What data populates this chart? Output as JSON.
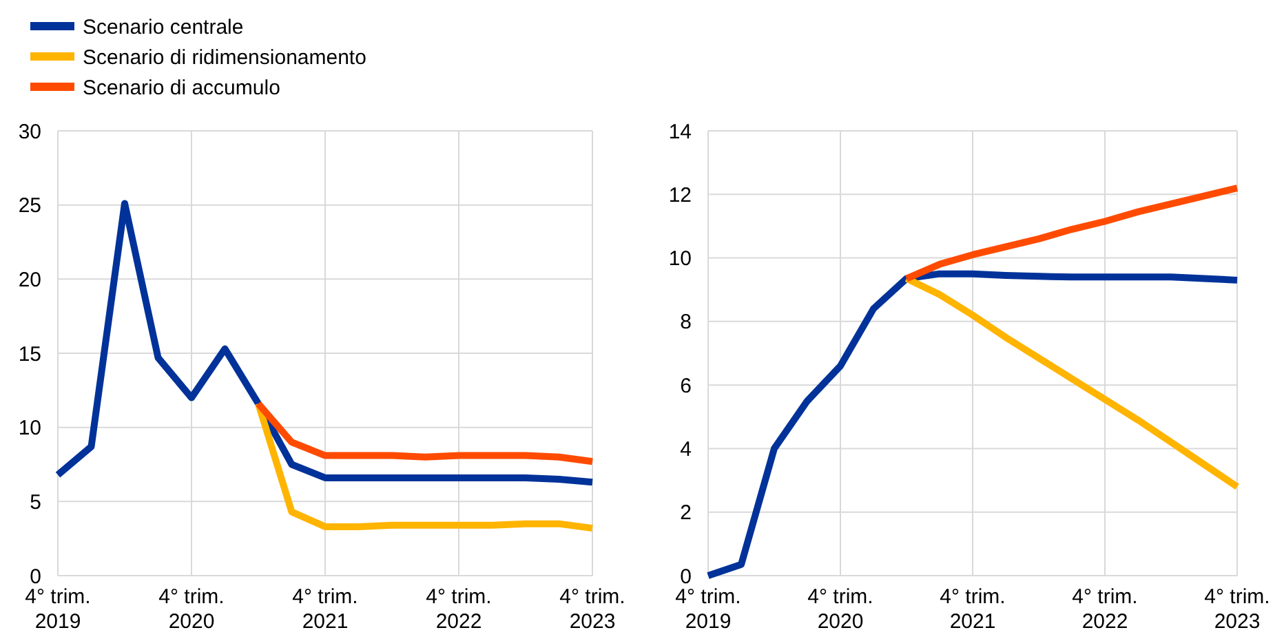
{
  "chart_data": [
    {
      "type": "line",
      "legend": "top left",
      "grid": true,
      "categories": [
        "4° trim.\n2019",
        null,
        null,
        null,
        "4° trim.\n2020",
        null,
        null,
        null,
        "4° trim.\n2021",
        null,
        null,
        null,
        "4° trim.\n2022",
        null,
        null,
        null,
        "4° trim.\n2023"
      ],
      "ylim": [
        0,
        30
      ],
      "yticks": [
        0,
        5,
        10,
        15,
        20,
        25,
        30
      ],
      "series": [
        {
          "name": "Scenario centrale",
          "color": "#003299",
          "values": [
            6.8,
            8.7,
            25.1,
            14.7,
            12.0,
            15.3,
            11.6,
            7.5,
            6.6,
            6.6,
            6.6,
            6.6,
            6.6,
            6.6,
            6.6,
            6.5,
            6.3
          ]
        },
        {
          "name": "Scenario di ridimensionamento",
          "color": "#ffb400",
          "values": [
            null,
            null,
            null,
            null,
            null,
            null,
            11.6,
            4.3,
            3.3,
            3.3,
            3.4,
            3.4,
            3.4,
            3.4,
            3.5,
            3.5,
            3.2
          ]
        },
        {
          "name": "Scenario di accumulo",
          "color": "#ff4b00",
          "values": [
            null,
            null,
            null,
            null,
            null,
            null,
            11.6,
            9.0,
            8.1,
            8.1,
            8.1,
            8.0,
            8.1,
            8.1,
            8.1,
            8.0,
            7.7
          ]
        }
      ]
    },
    {
      "type": "line",
      "legend": false,
      "grid": true,
      "categories": [
        "4° trim.\n2019",
        null,
        null,
        null,
        "4° trim.\n2020",
        null,
        null,
        null,
        "4° trim.\n2021",
        null,
        null,
        null,
        "4° trim.\n2022",
        null,
        null,
        null,
        "4° trim.\n2023"
      ],
      "ylim": [
        0,
        14
      ],
      "yticks": [
        0,
        2,
        4,
        6,
        8,
        10,
        12,
        14
      ],
      "series": [
        {
          "color": "#003299",
          "values": [
            0,
            0.35,
            4.0,
            5.5,
            6.6,
            8.4,
            9.35,
            9.5,
            9.5,
            9.45,
            9.42,
            9.4,
            9.4,
            9.4,
            9.4,
            9.35,
            9.3
          ]
        },
        {
          "color": "#ffb400",
          "values": [
            null,
            null,
            null,
            null,
            null,
            null,
            9.35,
            8.85,
            8.2,
            7.5,
            6.85,
            6.2,
            5.55,
            4.9,
            4.2,
            3.5,
            2.8
          ]
        },
        {
          "color": "#ff4b00",
          "values": [
            null,
            null,
            null,
            null,
            null,
            null,
            9.35,
            9.8,
            10.1,
            10.35,
            10.6,
            10.9,
            11.15,
            11.45,
            11.7,
            11.95,
            12.2
          ]
        }
      ]
    }
  ]
}
